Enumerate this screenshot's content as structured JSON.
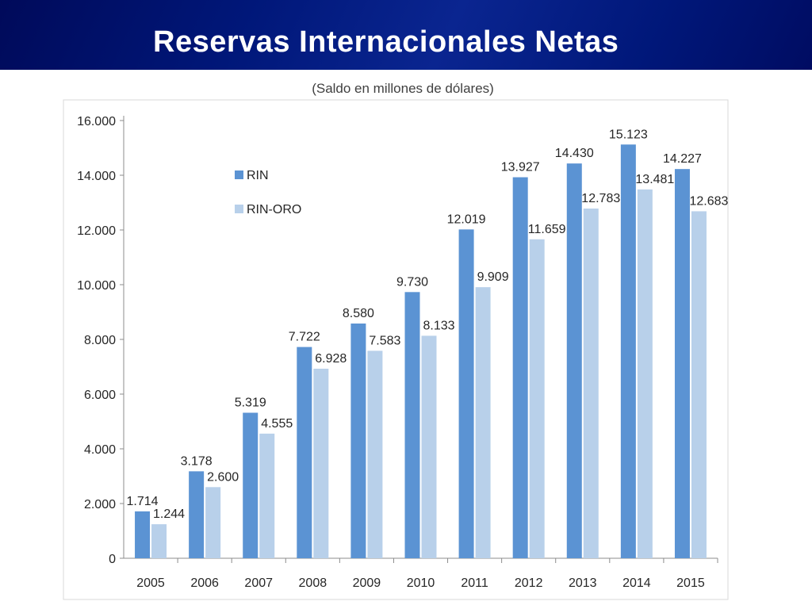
{
  "slide": {
    "title": "Reservas Internacionales Netas"
  },
  "chart_data": {
    "type": "bar",
    "subtitle": "(Saldo en millones de dólares)",
    "categories": [
      "2005",
      "2006",
      "2007",
      "2008",
      "2009",
      "2010",
      "2011",
      "2012",
      "2013",
      "2014",
      "2015"
    ],
    "series": [
      {
        "name": "RIN",
        "color": "#5b93d3",
        "values": [
          1714,
          3178,
          5319,
          7722,
          8580,
          9730,
          12019,
          13927,
          14430,
          15123,
          14227
        ],
        "labels": [
          "1.714",
          "3.178",
          "5.319",
          "7.722",
          "8.580",
          "9.730",
          "12.019",
          "13.927",
          "14.430",
          "15.123",
          "14.227"
        ]
      },
      {
        "name": "RIN-ORO",
        "color": "#b8d0ea",
        "values": [
          1244,
          2600,
          4555,
          6928,
          7583,
          8133,
          9909,
          11659,
          12783,
          13481,
          12683
        ],
        "labels": [
          "1.244",
          "2.600",
          "4.555",
          "6.928",
          "7.583",
          "8.133",
          "9.909",
          "11.659",
          "12.783",
          "13.481",
          "12.683"
        ]
      }
    ],
    "ylim": [
      0,
      16000
    ],
    "yticks": [
      {
        "value": 0,
        "label": "0"
      },
      {
        "value": 2000,
        "label": "2.000"
      },
      {
        "value": 4000,
        "label": "4.000"
      },
      {
        "value": 6000,
        "label": "6.000"
      },
      {
        "value": 8000,
        "label": "8.000"
      },
      {
        "value": 10000,
        "label": "10.000"
      },
      {
        "value": 12000,
        "label": "12.000"
      },
      {
        "value": 14000,
        "label": "14.000"
      },
      {
        "value": 16000,
        "label": "16.000"
      }
    ],
    "grid": false,
    "legend": "top-left"
  }
}
